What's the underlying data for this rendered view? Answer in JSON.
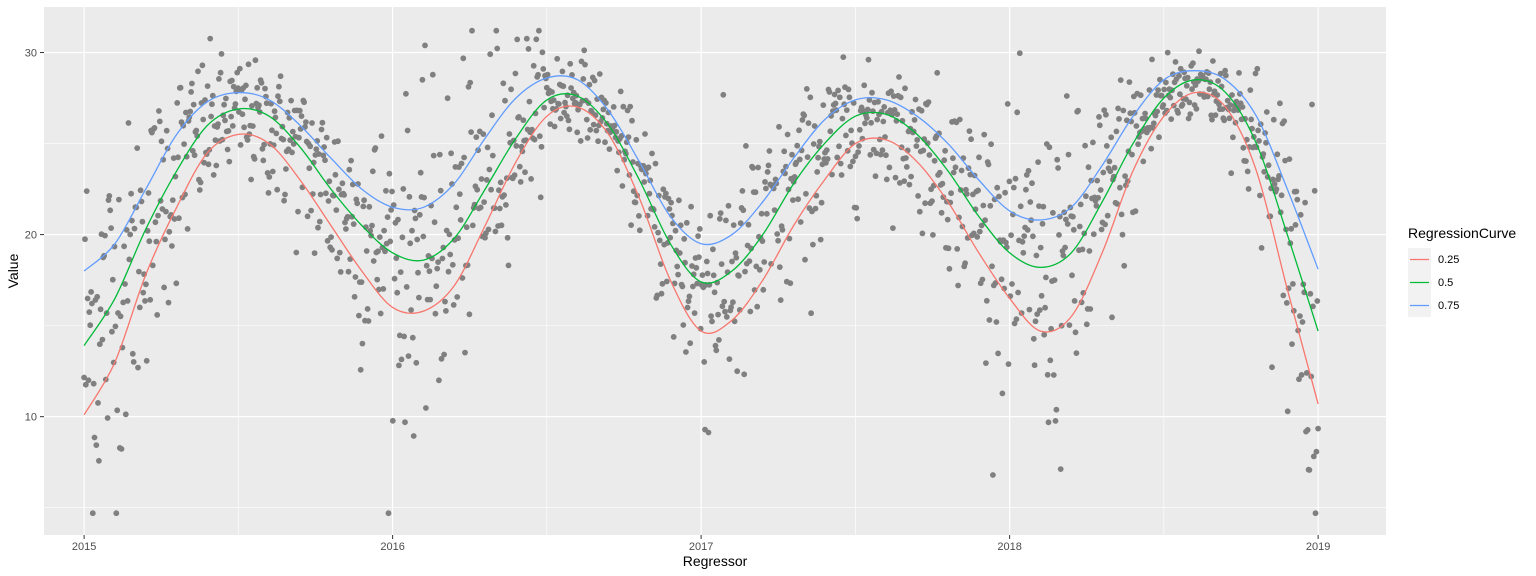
{
  "chart_data": {
    "type": "scatter",
    "xlabel": "Regressor",
    "ylabel": "Value",
    "xlim": [
      2014.87,
      2019.22
    ],
    "ylim": [
      3.5,
      32.5
    ],
    "x_ticks": [
      2015,
      2016,
      2017,
      2018,
      2019
    ],
    "y_ticks": [
      10,
      20,
      30
    ],
    "grid": true,
    "legend_position": "right",
    "legend_title": "RegressionCurve",
    "point_color": "#808080",
    "panel_background": "#EBEBEB",
    "curves": [
      {
        "name": "0.25",
        "color": "#F8766D",
        "x": [
          2015.0,
          2015.1,
          2015.2,
          2015.3,
          2015.4,
          2015.5,
          2015.6,
          2015.7,
          2015.8,
          2015.9,
          2016.0,
          2016.1,
          2016.2,
          2016.3,
          2016.4,
          2016.5,
          2016.6,
          2016.7,
          2016.8,
          2016.9,
          2017.0,
          2017.1,
          2017.2,
          2017.3,
          2017.4,
          2017.5,
          2017.6,
          2017.7,
          2017.8,
          2017.9,
          2018.0,
          2018.1,
          2018.2,
          2018.3,
          2018.4,
          2018.5,
          2018.6,
          2018.7,
          2018.8,
          2018.9,
          2019.0
        ],
        "y": [
          10.1,
          13.0,
          17.8,
          21.5,
          24.5,
          25.5,
          25.0,
          23.0,
          20.5,
          18.0,
          16.0,
          15.8,
          17.2,
          20.5,
          24.0,
          26.5,
          27.0,
          25.5,
          22.0,
          17.5,
          14.7,
          15.3,
          17.5,
          20.5,
          23.0,
          25.0,
          25.2,
          24.0,
          21.8,
          19.0,
          16.5,
          14.7,
          15.5,
          19.0,
          23.5,
          26.5,
          27.8,
          27.0,
          23.5,
          17.0,
          10.7
        ]
      },
      {
        "name": "0.5",
        "color": "#00BA38",
        "x": [
          2015.0,
          2015.1,
          2015.2,
          2015.3,
          2015.4,
          2015.5,
          2015.6,
          2015.7,
          2015.8,
          2015.9,
          2016.0,
          2016.1,
          2016.2,
          2016.3,
          2016.4,
          2016.5,
          2016.6,
          2016.7,
          2016.8,
          2016.9,
          2017.0,
          2017.1,
          2017.2,
          2017.3,
          2017.4,
          2017.5,
          2017.6,
          2017.7,
          2017.8,
          2017.9,
          2018.0,
          2018.1,
          2018.2,
          2018.3,
          2018.4,
          2018.5,
          2018.6,
          2018.7,
          2018.8,
          2018.9,
          2019.0
        ],
        "y": [
          13.9,
          16.5,
          20.3,
          23.5,
          26.0,
          26.9,
          26.5,
          24.8,
          22.5,
          20.5,
          19.0,
          18.6,
          19.8,
          22.5,
          25.3,
          27.4,
          27.6,
          26.0,
          23.0,
          19.5,
          17.4,
          18.0,
          20.0,
          22.8,
          25.0,
          26.5,
          26.6,
          25.5,
          23.5,
          21.0,
          19.0,
          18.2,
          19.0,
          21.8,
          25.0,
          27.5,
          28.5,
          27.8,
          25.0,
          20.0,
          14.7
        ]
      },
      {
        "name": "0.75",
        "color": "#619CFF",
        "x": [
          2015.0,
          2015.1,
          2015.2,
          2015.3,
          2015.4,
          2015.5,
          2015.6,
          2015.7,
          2015.8,
          2015.9,
          2016.0,
          2016.1,
          2016.2,
          2016.3,
          2016.4,
          2016.5,
          2016.6,
          2016.7,
          2016.8,
          2016.9,
          2017.0,
          2017.1,
          2017.2,
          2017.3,
          2017.4,
          2017.5,
          2017.6,
          2017.7,
          2017.8,
          2017.9,
          2018.0,
          2018.1,
          2018.2,
          2018.3,
          2018.4,
          2018.5,
          2018.6,
          2018.7,
          2018.8,
          2018.9,
          2019.0
        ],
        "y": [
          18.0,
          19.5,
          22.5,
          25.5,
          27.3,
          27.8,
          27.4,
          26.0,
          24.2,
          22.5,
          21.5,
          21.5,
          22.8,
          25.3,
          27.5,
          28.6,
          28.5,
          26.8,
          24.0,
          21.0,
          19.5,
          20.0,
          21.8,
          24.2,
          26.3,
          27.4,
          27.4,
          26.5,
          25.0,
          23.0,
          21.3,
          20.8,
          21.5,
          23.8,
          26.5,
          28.5,
          29.0,
          28.5,
          26.5,
          22.5,
          18.1
        ]
      }
    ]
  }
}
